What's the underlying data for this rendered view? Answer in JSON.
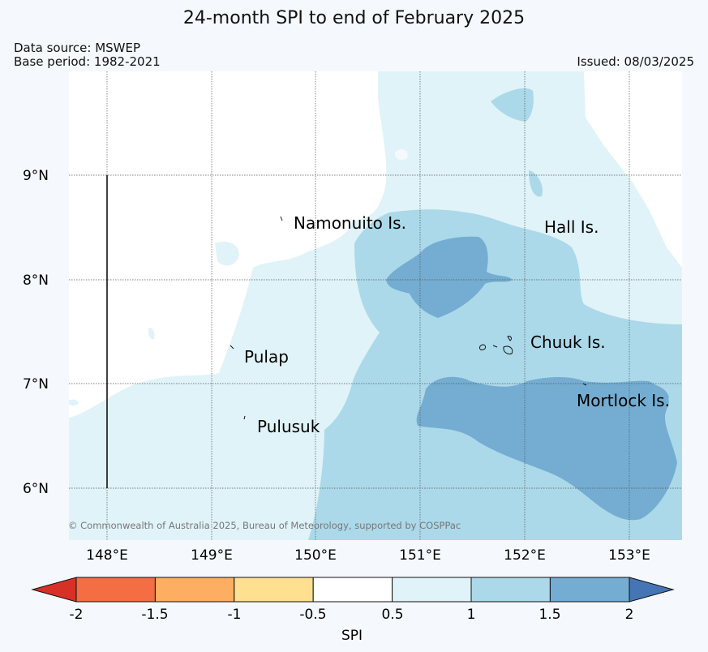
{
  "title": "24-month SPI to end of February 2025",
  "data_source": "Data source: MSWEP",
  "base_period": "Base period: 1982-2021",
  "issued": "Issued: 08/03/2025",
  "copyright": "© Commonwealth of Australia 2025, Bureau of Meteorology, supported by COSPPac",
  "latitude_labels": [
    "9°N",
    "8°N",
    "7°N",
    "6°N"
  ],
  "longitude_labels": [
    "148°E",
    "149°E",
    "150°E",
    "151°E",
    "152°E",
    "153°E"
  ],
  "places": {
    "namonuito": "Namonuito Is.",
    "hall": "Hall Is.",
    "chuuk": "Chuuk Is.",
    "pulap": "Pulap",
    "pulusuk": "Pulusuk",
    "mortlock": "Mortlock Is."
  },
  "colorbar": {
    "label": "SPI",
    "tick_labels": [
      "-2",
      "-1.5",
      "-1",
      "-0.5",
      "0.5",
      "1",
      "1.5",
      "2"
    ],
    "bins": [
      {
        "range": "< -2",
        "color": "#d73027"
      },
      {
        "range": "-2 to -1.5",
        "color": "#f46d43"
      },
      {
        "range": "-1.5 to -1",
        "color": "#fdae61"
      },
      {
        "range": "-1 to -0.5",
        "color": "#fee090"
      },
      {
        "range": "-0.5 to 0.5",
        "color": "#ffffff"
      },
      {
        "range": "0.5 to 1",
        "color": "#e0f3f8"
      },
      {
        "range": "1 to 1.5",
        "color": "#abd9e9"
      },
      {
        "range": "1.5 to 2",
        "color": "#74add1"
      },
      {
        "range": "> 2",
        "color": "#4575b4"
      }
    ]
  }
}
